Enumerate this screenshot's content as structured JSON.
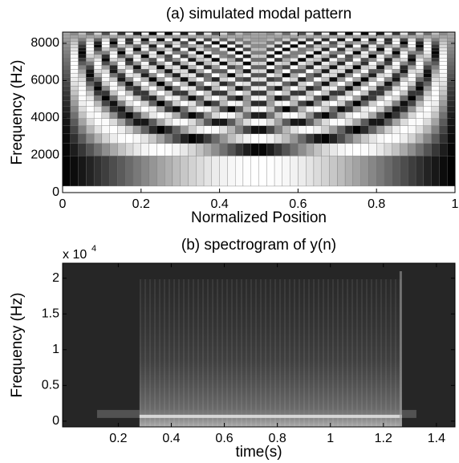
{
  "chart_data": [
    {
      "type": "modal",
      "title": "(a) simulated modal pattern",
      "x_label": "Normalized Position",
      "y_label": "Frequency (Hz)",
      "xlim": [
        0,
        1
      ],
      "xticks": [
        0,
        0.2,
        0.4,
        0.6,
        0.8,
        1
      ],
      "ylim": [
        0,
        8600
      ],
      "yticks": [
        0,
        2000,
        4000,
        6000,
        8000
      ]
    },
    {
      "type": "spectrogram",
      "title": "(b) spectrogram of y(n)",
      "x_label": "time(s)",
      "y_label": "Frequency (Hz)",
      "y_multiplier": "x 10",
      "y_multiplier_exp": "4",
      "xlim": [
        -0.01,
        1.47
      ],
      "xticks": [
        0.2,
        0.4,
        0.6,
        0.8,
        1,
        1.2,
        1.4
      ],
      "ylim": [
        -0.08,
        2.21
      ],
      "yticks": [
        0,
        0.5,
        1,
        1.5,
        2
      ]
    }
  ]
}
